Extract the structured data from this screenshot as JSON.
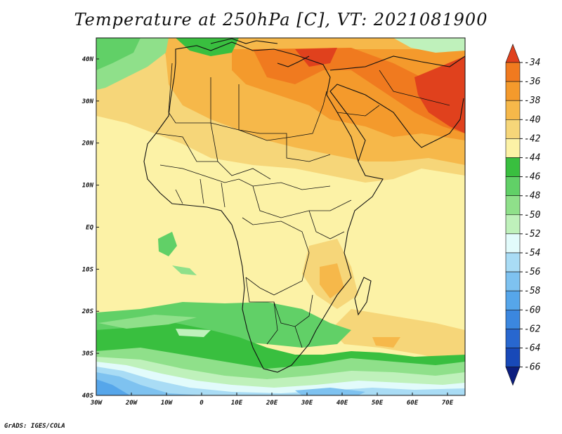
{
  "title": "Temperature at 250hPa [C], VT: 2021081900",
  "credit": "GrADS: IGES/COLA",
  "map": {
    "lon_ticks": [
      "30W",
      "20W",
      "10W",
      "0",
      "10E",
      "20E",
      "30E",
      "40E",
      "50E",
      "60E",
      "70E"
    ],
    "lat_ticks": [
      "40N",
      "30N",
      "20N",
      "10N",
      "EQ",
      "10S",
      "20S",
      "30S",
      "40S"
    ],
    "lon_values": [
      -30,
      -20,
      -10,
      0,
      10,
      20,
      30,
      40,
      50,
      60,
      70
    ],
    "lat_values": [
      40,
      30,
      20,
      10,
      0,
      -10,
      -20,
      -30,
      -40
    ]
  },
  "colorbar": {
    "labels": [
      "-34",
      "-36",
      "-38",
      "-40",
      "-42",
      "-44",
      "-46",
      "-48",
      "-50",
      "-52",
      "-54",
      "-56",
      "-58",
      "-60",
      "-62",
      "-64",
      "-66"
    ],
    "colors": [
      "#e0411d",
      "#f07a1f",
      "#f49a2c",
      "#f6b84a",
      "#f6d679",
      "#fcf2a6",
      "#39bf3f",
      "#61d067",
      "#8fe08a",
      "#bff1bb",
      "#e2fbfb",
      "#a9dcf5",
      "#7ec2f0",
      "#56a6ea",
      "#3b87df",
      "#2867cf",
      "#1849b8",
      "#0c1e7f"
    ]
  }
}
